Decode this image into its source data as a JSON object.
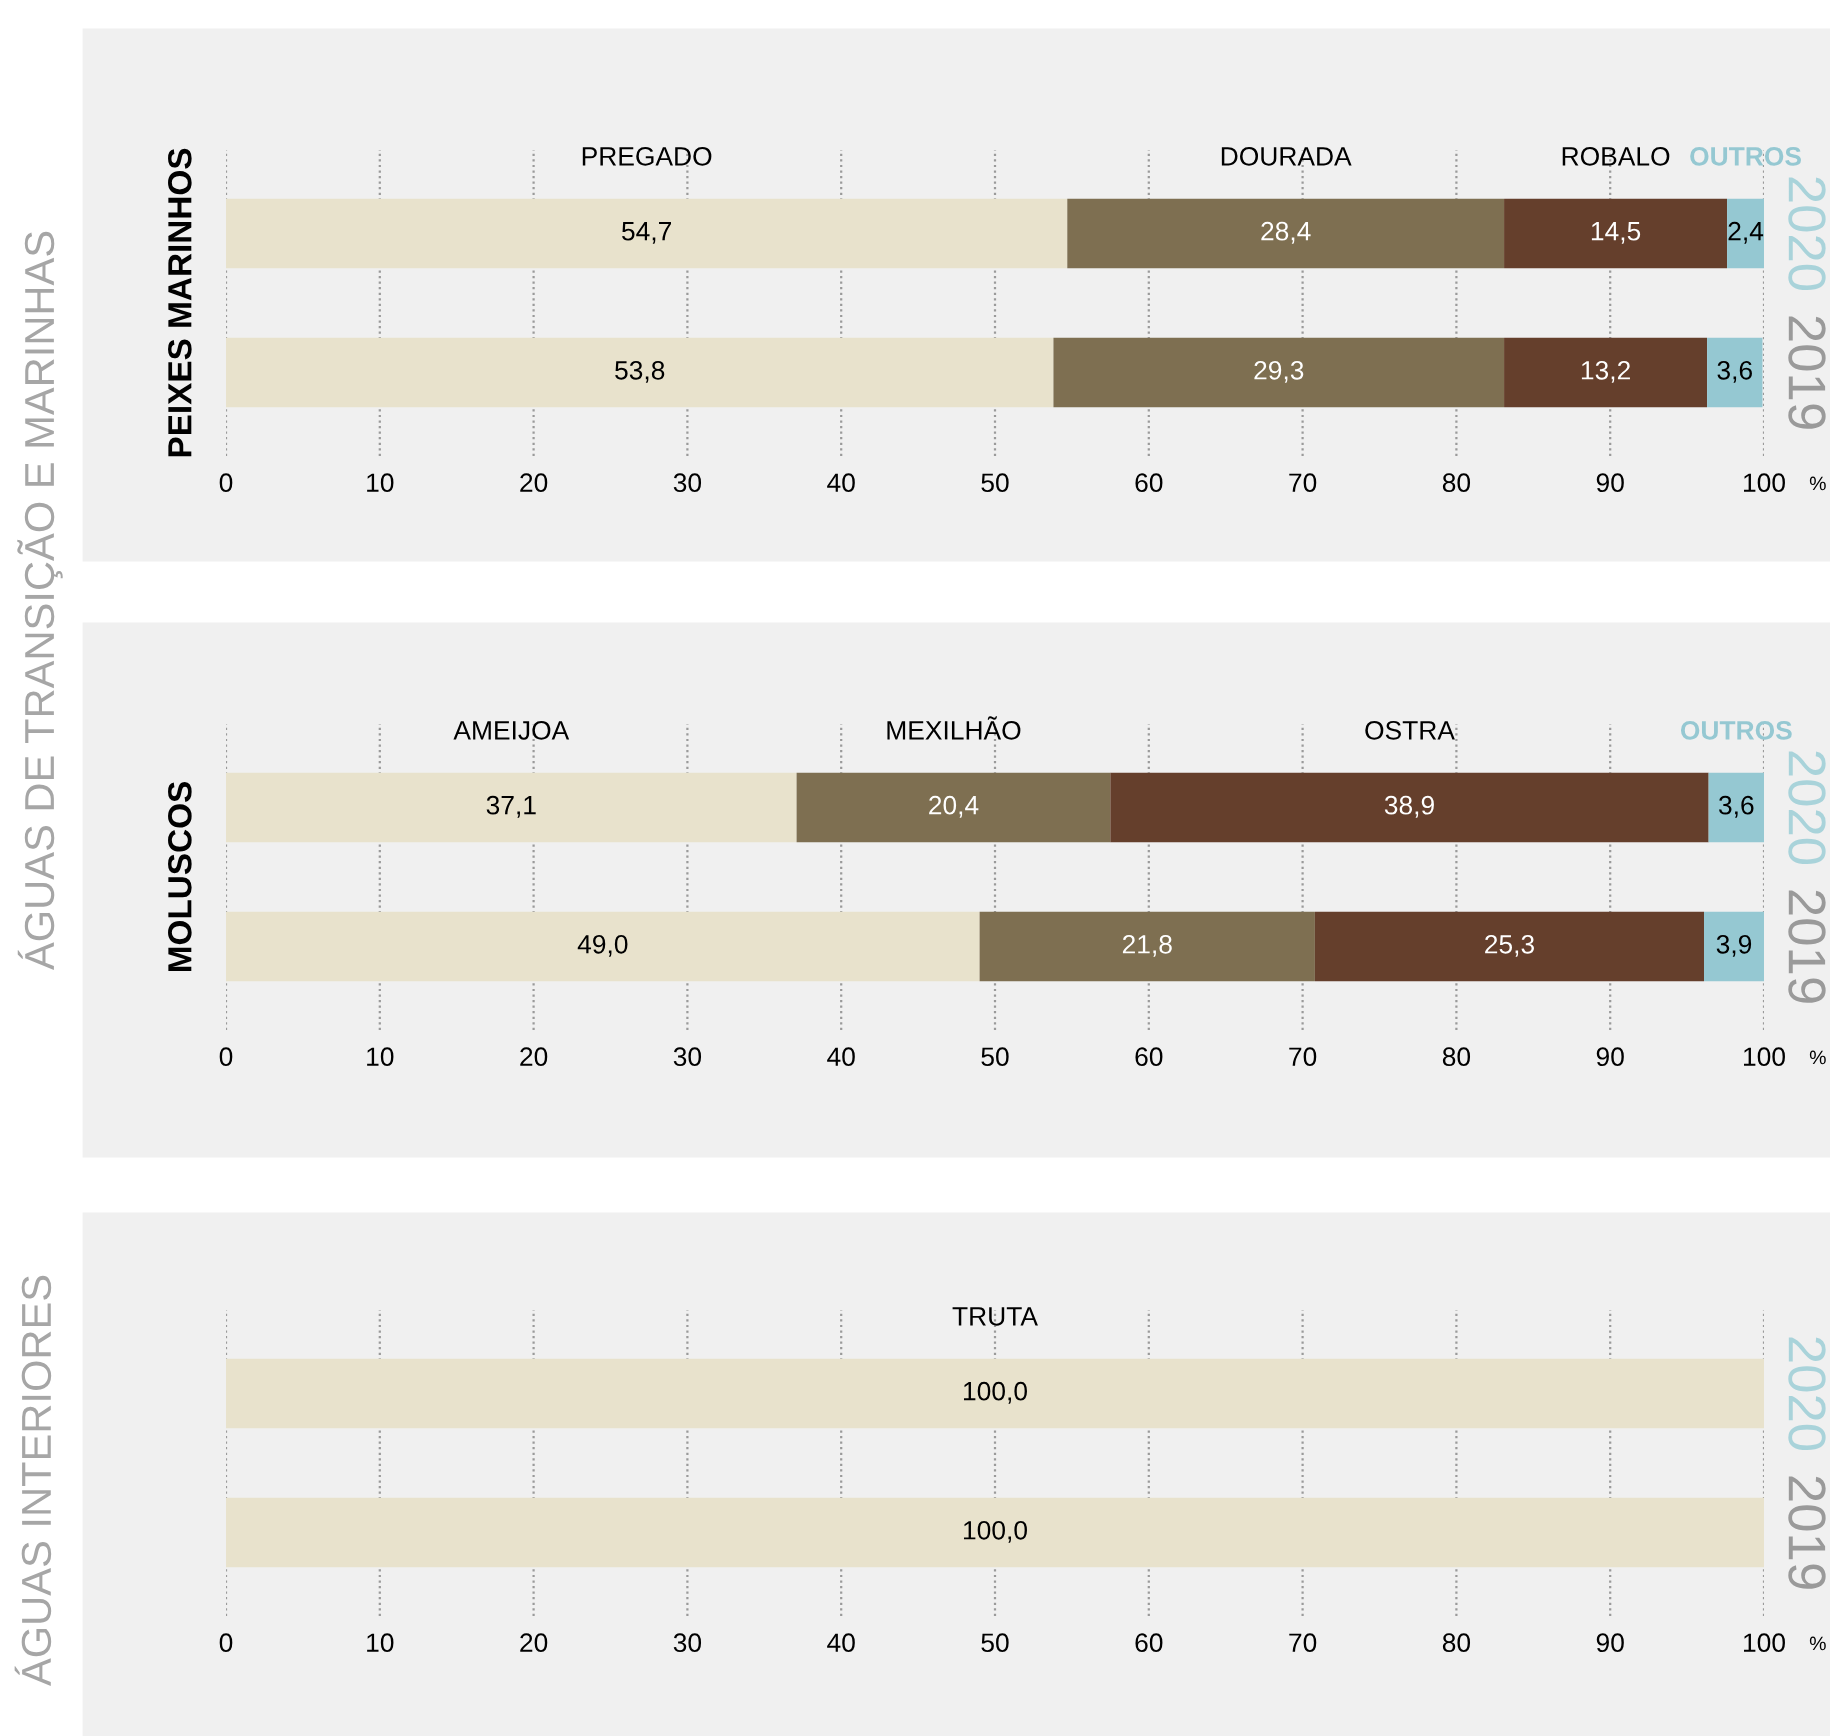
{
  "chart_data": [
    {
      "type": "bar",
      "orientation": "horizontal",
      "stacked": true,
      "ylabel": "PEIXES MARINHOS",
      "xlabel": "%",
      "categories": [
        "2020",
        "2019"
      ],
      "series": [
        {
          "name": "PREGADO",
          "color": "#e8e2cc",
          "values": [
            54.7,
            53.8
          ],
          "value_labels": [
            "54,7",
            "53,8"
          ]
        },
        {
          "name": "DOURADA",
          "color": "#7e6f51",
          "values": [
            28.4,
            29.3
          ],
          "value_labels": [
            "28,4",
            "29,3"
          ]
        },
        {
          "name": "ROBALO",
          "color": "#653f2c",
          "values": [
            14.5,
            13.2
          ],
          "value_labels": [
            "14,5",
            "13,2"
          ]
        },
        {
          "name": "OUTROS",
          "color": "#95c8d2",
          "values": [
            2.4,
            3.6
          ],
          "value_labels": [
            "2,4",
            "3,6"
          ]
        }
      ],
      "xlim": [
        0,
        100
      ],
      "xticks": [
        0,
        10,
        20,
        30,
        40,
        50,
        60,
        70,
        80,
        90,
        100
      ],
      "grid": "x",
      "legend": false,
      "annotations": [
        "ÁGUAS DE TRANSIÇÃO E MARINHAS"
      ]
    },
    {
      "type": "bar",
      "orientation": "horizontal",
      "stacked": true,
      "ylabel": "MOLUSCOS",
      "xlabel": "%",
      "categories": [
        "2020",
        "2019"
      ],
      "series": [
        {
          "name": "AMEIJOA",
          "color": "#e8e2cc",
          "values": [
            37.1,
            49.0
          ],
          "value_labels": [
            "37,1",
            "49,0"
          ]
        },
        {
          "name": "MEXILHÃO",
          "color": "#7e6f51",
          "values": [
            20.4,
            21.8
          ],
          "value_labels": [
            "20,4",
            "21,8"
          ]
        },
        {
          "name": "OSTRA",
          "color": "#653f2c",
          "values": [
            38.9,
            25.3
          ],
          "value_labels": [
            "38,9",
            "25,3"
          ]
        },
        {
          "name": "OUTROS",
          "color": "#95c8d2",
          "values": [
            3.6,
            3.9
          ],
          "value_labels": [
            "3,6",
            "3,9"
          ]
        }
      ],
      "xlim": [
        0,
        100
      ],
      "xticks": [
        0,
        10,
        20,
        30,
        40,
        50,
        60,
        70,
        80,
        90,
        100
      ],
      "grid": "x",
      "legend": false
    },
    {
      "type": "bar",
      "orientation": "horizontal",
      "stacked": true,
      "xlabel": "%",
      "categories": [
        "2020",
        "2019"
      ],
      "series": [
        {
          "name": "TRUTA",
          "color": "#e8e2cc",
          "values": [
            100.0,
            100.0
          ],
          "value_labels": [
            "100,0",
            "100,0"
          ]
        }
      ],
      "xlim": [
        0,
        100
      ],
      "xticks": [
        0,
        10,
        20,
        30,
        40,
        50,
        60,
        70,
        80,
        90,
        100
      ],
      "grid": "x",
      "legend": false,
      "annotations": [
        "ÁGUAS INTERIORES"
      ]
    }
  ]
}
